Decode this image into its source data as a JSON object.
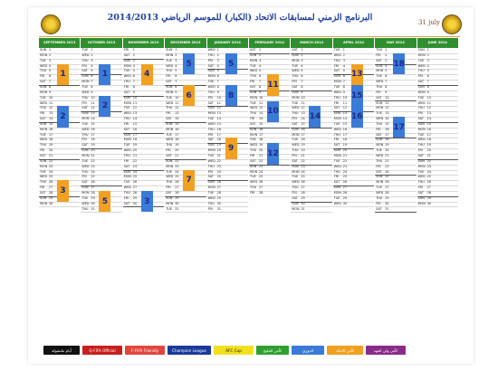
{
  "header": {
    "date_note": "31 july 2013",
    "title_ar": "البرنامج الزمني لمسابقات الاتحاد (الكبار) للموسم الرياضي 2014/2013"
  },
  "months": [
    {
      "label": "SEPTEMBER 2013",
      "days": 30,
      "start": 0
    },
    {
      "label": "OCTOBER 2013",
      "days": 31,
      "start": 2
    },
    {
      "label": "NOVEMBER 2013",
      "days": 30,
      "start": 5
    },
    {
      "label": "DECEMBER 2013",
      "days": 31,
      "start": 0
    },
    {
      "label": "JANUARY 2014",
      "days": 31,
      "start": 3
    },
    {
      "label": "FEBRUARY 2014",
      "days": 28,
      "start": 6
    },
    {
      "label": "MARCH 2014",
      "days": 31,
      "start": 6
    },
    {
      "label": "APRIL 2014",
      "days": 30,
      "start": 2
    },
    {
      "label": "MAY 2014",
      "days": 31,
      "start": 4
    },
    {
      "label": "JUNE 2014",
      "days": 30,
      "start": 0
    }
  ],
  "weekdays": [
    "SUN",
    "MON",
    "TUE",
    "WED",
    "THU",
    "FRI",
    "SAT"
  ],
  "boxes": [
    {
      "m": 0,
      "day": 4,
      "span": 4,
      "n": "1",
      "c": "#f2a020"
    },
    {
      "m": 0,
      "day": 12,
      "span": 4,
      "n": "2",
      "c": "#3a7ad8"
    },
    {
      "m": 0,
      "day": 26,
      "span": 4,
      "n": "3",
      "c": "#f2a020"
    },
    {
      "m": 1,
      "day": 4,
      "span": 4,
      "n": "1",
      "c": "#3a7ad8"
    },
    {
      "m": 1,
      "day": 10,
      "span": 4,
      "n": "2",
      "c": "#3a7ad8"
    },
    {
      "m": 1,
      "day": 28,
      "span": 4,
      "n": "5",
      "c": "#f2a020"
    },
    {
      "m": 2,
      "day": 4,
      "span": 4,
      "n": "4",
      "c": "#f2a020"
    },
    {
      "m": 2,
      "day": 28,
      "span": 4,
      "n": "3",
      "c": "#3a7ad8"
    },
    {
      "m": 3,
      "day": 2,
      "span": 4,
      "n": "5",
      "c": "#3a7ad8"
    },
    {
      "m": 3,
      "day": 8,
      "span": 4,
      "n": "6",
      "c": "#f2a020"
    },
    {
      "m": 3,
      "day": 24,
      "span": 4,
      "n": "7",
      "c": "#f2a020"
    },
    {
      "m": 4,
      "day": 2,
      "span": 4,
      "n": "5",
      "c": "#3a7ad8"
    },
    {
      "m": 4,
      "day": 8,
      "span": 4,
      "n": "8",
      "c": "#3a7ad8"
    },
    {
      "m": 4,
      "day": 18,
      "span": 4,
      "n": "9",
      "c": "#f2a020"
    },
    {
      "m": 5,
      "day": 6,
      "span": 4,
      "n": "11",
      "c": "#f2a020"
    },
    {
      "m": 5,
      "day": 11,
      "span": 4,
      "n": "10",
      "c": "#3a7ad8"
    },
    {
      "m": 5,
      "day": 19,
      "span": 4,
      "n": "12",
      "c": "#3a7ad8"
    },
    {
      "m": 6,
      "day": 12,
      "span": 4,
      "n": "14",
      "c": "#3a7ad8"
    },
    {
      "m": 7,
      "day": 4,
      "span": 4,
      "n": "13",
      "c": "#f2a020"
    },
    {
      "m": 7,
      "day": 8,
      "span": 4,
      "n": "15",
      "c": "#3a7ad8"
    },
    {
      "m": 7,
      "day": 12,
      "span": 4,
      "n": "16",
      "c": "#3a7ad8"
    },
    {
      "m": 8,
      "day": 2,
      "span": 4,
      "n": "18",
      "c": "#3a7ad8"
    },
    {
      "m": 8,
      "day": 14,
      "span": 4,
      "n": "17",
      "c": "#3a7ad8"
    }
  ],
  "legend": [
    {
      "label": "أيام ماتشولة",
      "c": "#111111",
      "t": "#ffffff"
    },
    {
      "label": "Q-FIFA Official",
      "c": "#c81e1e",
      "t": "#ffffff"
    },
    {
      "label": "F-FIFA Friendly",
      "c": "#e0463c",
      "t": "#ffffff"
    },
    {
      "label": "Champion League",
      "c": "#1a3a9a",
      "t": "#ffffff"
    },
    {
      "label": "AFC Cup",
      "c": "#f2e020",
      "t": "#111111"
    },
    {
      "label": "كأس الخليج",
      "c": "#2fa02f",
      "t": "#ffffff"
    },
    {
      "label": "الدوري",
      "c": "#3a7ad8",
      "t": "#ffffff"
    },
    {
      "label": "كأس الاتحاد",
      "c": "#f2a020",
      "t": "#ffffff"
    },
    {
      "label": "كأس ولي العهد",
      "c": "#8a2a8a",
      "t": "#ffffff"
    }
  ]
}
